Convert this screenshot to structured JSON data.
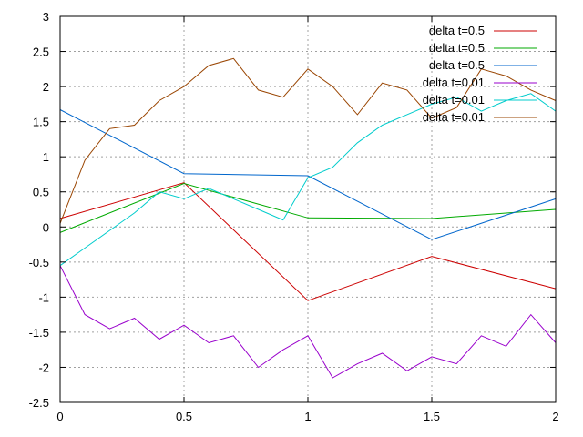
{
  "chart_data": {
    "type": "line",
    "xlim": [
      0,
      2
    ],
    "ylim": [
      -2.5,
      3
    ],
    "xticks": [
      0,
      0.5,
      1,
      1.5,
      2
    ],
    "yticks": [
      -2.5,
      -2,
      -1.5,
      -1,
      -0.5,
      0,
      0.5,
      1,
      1.5,
      2,
      2.5,
      3
    ],
    "xtick_labels": [
      "0",
      "0.5",
      "1",
      "1.5",
      "2"
    ],
    "ytick_labels": [
      "-2.5",
      "-2",
      "-1.5",
      "-1",
      "-0.5",
      "0",
      "0.5",
      "1",
      "1.5",
      "2",
      "2.5",
      "3"
    ],
    "grid": true,
    "legend_position": "top-right",
    "series": [
      {
        "name": "delta t=0.5",
        "color": "#cc0000",
        "x": [
          0,
          0.5,
          1,
          1.5,
          2
        ],
        "y": [
          0.12,
          0.63,
          -1.05,
          -0.42,
          -0.88
        ]
      },
      {
        "name": "delta t=0.5",
        "color": "#00aa00",
        "x": [
          0,
          0.5,
          1,
          1.5,
          2
        ],
        "y": [
          -0.08,
          0.62,
          0.13,
          0.12,
          0.25
        ]
      },
      {
        "name": "delta t=0.5",
        "color": "#0066cc",
        "x": [
          0,
          0.5,
          1,
          1.5,
          2
        ],
        "y": [
          1.67,
          0.76,
          0.73,
          -0.18,
          0.4
        ]
      },
      {
        "name": "delta t=0.01",
        "color": "#9900cc",
        "x": [
          0,
          0.1,
          0.2,
          0.3,
          0.4,
          0.5,
          0.6,
          0.7,
          0.8,
          0.9,
          1.0,
          1.1,
          1.2,
          1.3,
          1.4,
          1.5,
          1.6,
          1.7,
          1.8,
          1.9,
          2.0
        ],
        "y": [
          -0.55,
          -1.25,
          -1.45,
          -1.3,
          -1.6,
          -1.4,
          -1.65,
          -1.55,
          -2.0,
          -1.75,
          -1.55,
          -2.15,
          -1.95,
          -1.8,
          -2.05,
          -1.85,
          -1.95,
          -1.55,
          -1.7,
          -1.25,
          -1.65
        ]
      },
      {
        "name": "delta t=0.01",
        "color": "#00cccc",
        "x": [
          0,
          0.1,
          0.2,
          0.3,
          0.4,
          0.5,
          0.6,
          0.7,
          0.8,
          0.9,
          1.0,
          1.1,
          1.2,
          1.3,
          1.4,
          1.5,
          1.6,
          1.7,
          1.8,
          1.9,
          2.0
        ],
        "y": [
          -0.55,
          -0.3,
          -0.05,
          0.2,
          0.5,
          0.4,
          0.55,
          0.4,
          0.25,
          0.1,
          0.7,
          0.85,
          1.2,
          1.45,
          1.6,
          1.75,
          1.85,
          1.65,
          1.8,
          1.9,
          1.65
        ]
      },
      {
        "name": "delta t=0.01",
        "color": "#994400",
        "x": [
          0,
          0.1,
          0.2,
          0.3,
          0.4,
          0.5,
          0.6,
          0.7,
          0.8,
          0.9,
          1.0,
          1.1,
          1.2,
          1.3,
          1.4,
          1.5,
          1.6,
          1.7,
          1.8,
          1.9,
          2.0
        ],
        "y": [
          0.05,
          0.95,
          1.4,
          1.45,
          1.8,
          2.0,
          2.3,
          2.4,
          1.95,
          1.85,
          2.25,
          2.0,
          1.6,
          2.05,
          1.95,
          1.55,
          1.7,
          2.25,
          2.15,
          1.95,
          1.8
        ]
      }
    ]
  }
}
